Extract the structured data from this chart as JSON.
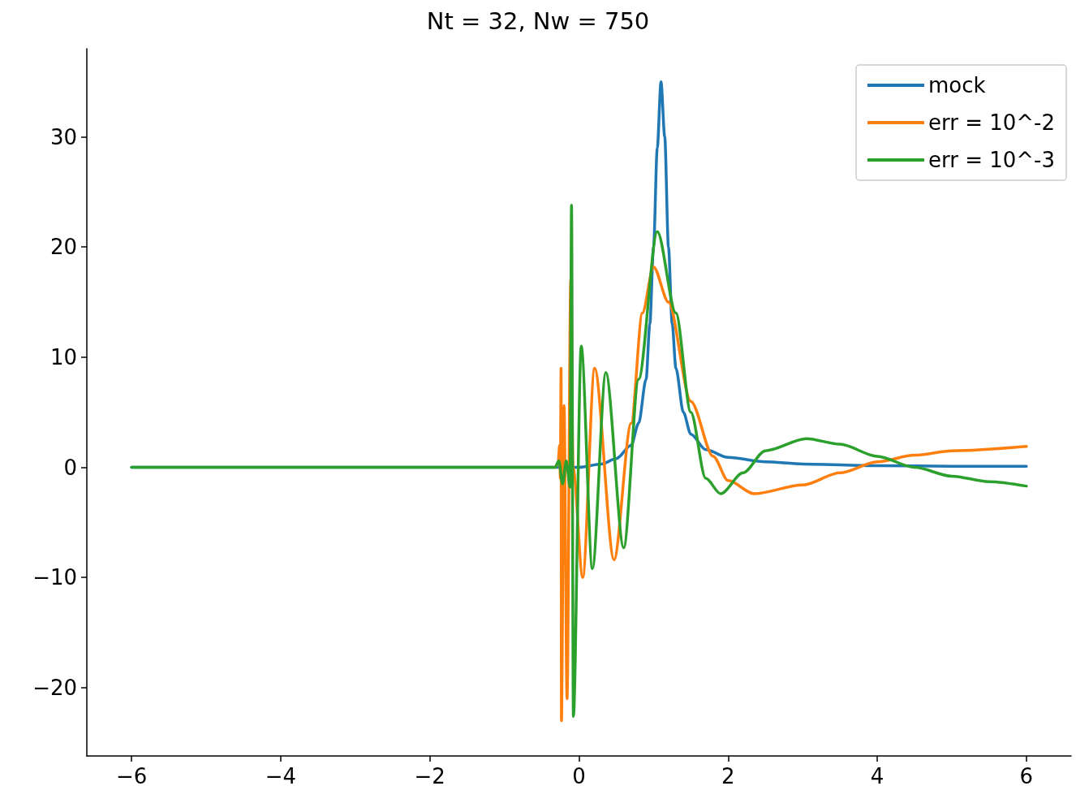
{
  "chart_data": {
    "type": "line",
    "title": "Nt = 32, Nw = 750",
    "xlim": [
      -6.6,
      6.6
    ],
    "ylim": [
      -26.2,
      38
    ],
    "xticks": [
      {
        "value": -6,
        "label": "−6"
      },
      {
        "value": -4,
        "label": "−4"
      },
      {
        "value": -2,
        "label": "−2"
      },
      0,
      2,
      4,
      6
    ],
    "yticks": [
      {
        "value": -20,
        "label": "−20"
      },
      {
        "value": -10,
        "label": "−10"
      },
      0,
      10,
      20,
      30
    ],
    "grid": false,
    "legend": "top right",
    "marker": "none",
    "line_style": "solid",
    "series": [
      {
        "name": "mock",
        "color": "#1f77b4",
        "x": [
          -6,
          -2,
          0,
          0.3,
          0.5,
          0.7,
          0.8,
          0.9,
          0.95,
          1.0,
          1.05,
          1.1,
          1.15,
          1.2,
          1.25,
          1.3,
          1.4,
          1.5,
          1.7,
          2,
          2.5,
          3,
          4,
          5,
          6
        ],
        "values": [
          0,
          0,
          0,
          0.3,
          0.8,
          2,
          4,
          8,
          13,
          20,
          29,
          35,
          30,
          20,
          13,
          9,
          5,
          3,
          1.6,
          0.9,
          0.5,
          0.3,
          0.15,
          0.1,
          0.1
        ]
      },
      {
        "name": "err = 10^-2",
        "color": "#ff7f0e",
        "x": [
          -0.32,
          -0.28,
          -0.26,
          -0.25,
          -0.24,
          -0.235,
          -0.2,
          -0.16,
          -0.11,
          -0.08,
          0.05,
          0.21,
          0.47,
          0.7,
          0.85,
          1.0,
          1.2,
          1.5,
          1.8,
          2.0,
          2.35,
          3,
          3.5,
          4,
          4.5,
          5,
          6
        ],
        "values": [
          0,
          0.3,
          2,
          -1,
          9,
          -23,
          5.6,
          -21,
          17,
          0,
          -10,
          9,
          -8.4,
          4,
          14,
          18.2,
          15,
          6,
          1,
          -1.2,
          -2.4,
          -1.6,
          -0.5,
          0.5,
          1.1,
          1.5,
          1.9
        ]
      },
      {
        "name": "err = 10^-3",
        "color": "#2ca02c",
        "x": [
          -6,
          -2,
          -0.32,
          -0.27,
          -0.22,
          -0.17,
          -0.12,
          -0.1,
          -0.075,
          0.03,
          0.18,
          0.36,
          0.6,
          0.8,
          1.05,
          1.3,
          1.5,
          1.7,
          1.9,
          2.2,
          2.5,
          3.05,
          3.5,
          4,
          4.5,
          5,
          5.5,
          6
        ],
        "values": [
          0,
          0,
          0,
          0.6,
          -1.5,
          0.6,
          -1.8,
          23.8,
          -22.6,
          11,
          -9.2,
          8.6,
          -7.3,
          8,
          21.4,
          14,
          5,
          -1,
          -2.4,
          -0.5,
          1.5,
          2.6,
          2.1,
          1,
          0,
          -0.8,
          -1.3,
          -1.7
        ]
      }
    ]
  }
}
